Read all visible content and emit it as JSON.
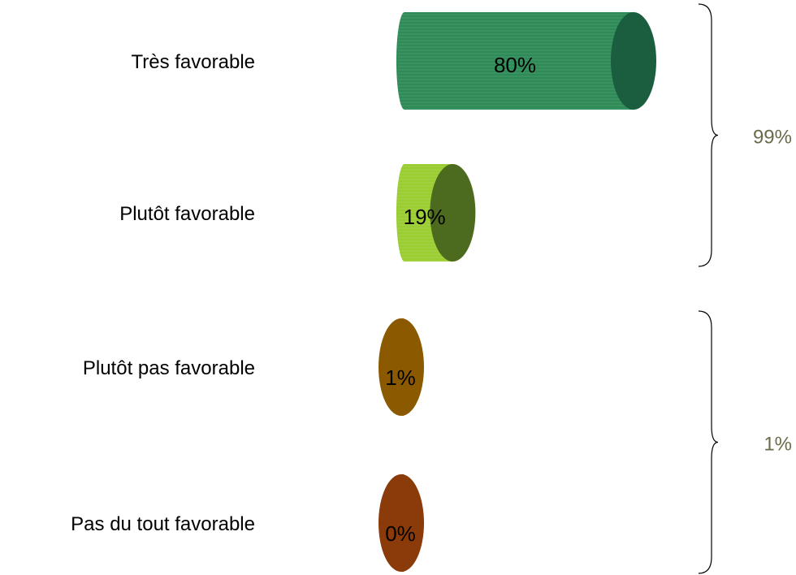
{
  "chart_data": {
    "type": "bar",
    "orientation": "horizontal",
    "style": "3d-cylinder",
    "categories": [
      "Très favorable",
      "Plutôt favorable",
      "Plutôt pas favorable",
      "Pas du tout favorable"
    ],
    "values": [
      80,
      19,
      1,
      0
    ],
    "value_labels": [
      "80%",
      "19%",
      "1%",
      "0%"
    ],
    "colors": [
      {
        "body": "#2E8B57",
        "cap": "#1B5E3F"
      },
      {
        "body": "#9ACD32",
        "cap": "#4D6B1E"
      },
      {
        "body": "#C8720F",
        "cap": "#8B5A00"
      },
      {
        "body": "#8B3A0A",
        "cap": "#8B3A0A"
      }
    ],
    "groups": [
      {
        "label": "99%",
        "categories": [
          0,
          1
        ]
      },
      {
        "label": "1%",
        "categories": [
          2,
          3
        ]
      }
    ],
    "group_label_color": "#6B6B4A",
    "xlim": [
      0,
      80
    ],
    "grid": false,
    "legend": "none"
  }
}
